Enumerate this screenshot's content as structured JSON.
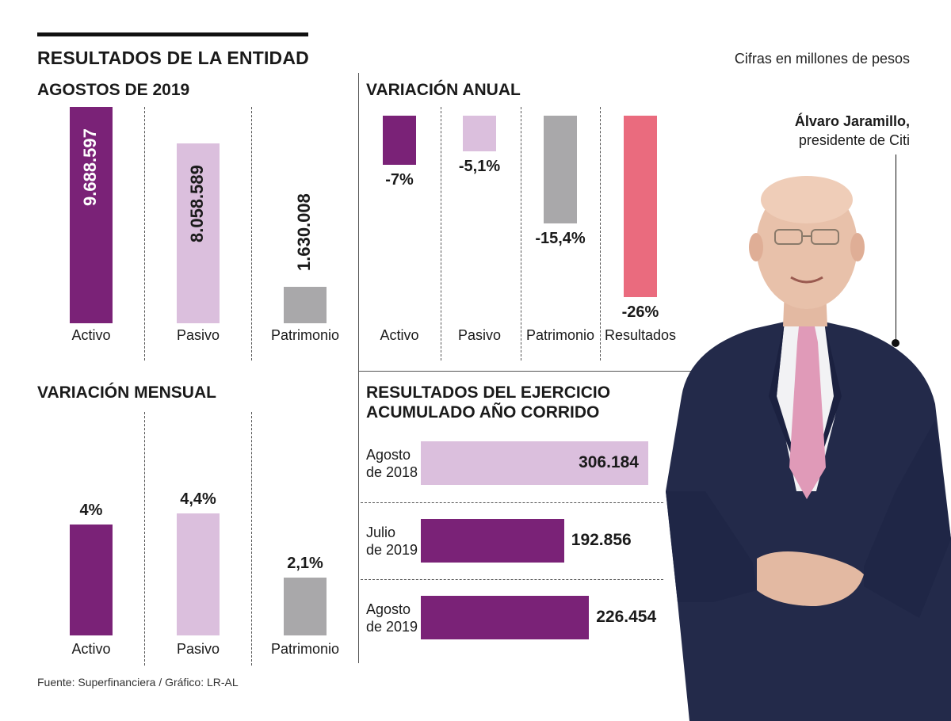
{
  "header": {
    "title": "RESULTADOS DE LA ENTIDAD",
    "note": "Cifras en millones de pesos"
  },
  "caption": {
    "name": "Álvaro Jaramillo,",
    "role": "presidente de Citi"
  },
  "source": "Fuente: Superfinanciera / Gráfico: LR-AL",
  "colors": {
    "purple": "#7a2277",
    "lilac": "#dbbfdd",
    "gray": "#a9a8aa",
    "pink": "#ea6b7e",
    "suit": "#232a4a"
  },
  "chart_data": [
    {
      "type": "bar",
      "title": "AGOSTOS DE 2019",
      "categories": [
        "Activo",
        "Pasivo",
        "Patrimonio"
      ],
      "values": [
        9688597,
        8058589,
        1630008
      ],
      "labels": [
        "9.688.597",
        "8.058.589",
        "1.630.008"
      ],
      "ylim": [
        0,
        9688597
      ]
    },
    {
      "type": "bar",
      "title": "VARIACIÓN ANUAL",
      "categories": [
        "Activo",
        "Pasivo",
        "Patrimonio",
        "Resultados"
      ],
      "values": [
        -7,
        -5.1,
        -15.4,
        -26
      ],
      "labels": [
        "-7%",
        "-5,1%",
        "-15,4%",
        "-26%"
      ],
      "ylim": [
        -26,
        0
      ]
    },
    {
      "type": "bar",
      "title": "VARIACIÓN MENSUAL",
      "categories": [
        "Activo",
        "Pasivo",
        "Patrimonio"
      ],
      "values": [
        4,
        4.4,
        2.1
      ],
      "labels": [
        "4%",
        "4,4%",
        "2,1%"
      ],
      "ylim": [
        0,
        4.4
      ]
    },
    {
      "type": "bar",
      "orientation": "horizontal",
      "title_line1": "RESULTADOS DEL EJERCICIO",
      "title_line2": "ACUMULADO AÑO CORRIDO",
      "categories": [
        {
          "line1": "Agosto",
          "line2": "de 2018"
        },
        {
          "line1": "Julio",
          "line2": "de 2019"
        },
        {
          "line1": "Agosto",
          "line2": "de 2019"
        }
      ],
      "values": [
        306184,
        192856,
        226454
      ],
      "labels": [
        "306.184",
        "192.856",
        "226.454"
      ],
      "xlim": [
        0,
        306184
      ]
    }
  ]
}
